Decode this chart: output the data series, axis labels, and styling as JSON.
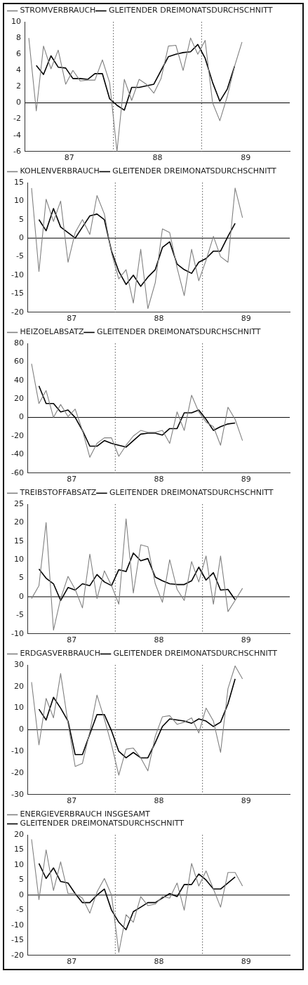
{
  "chart_data": [
    {
      "type": "line",
      "xlim": [
        "1987-01-01",
        "1990-01-01"
      ],
      "xticks": [
        {
          "value": "1987-07-01",
          "label": "87"
        },
        {
          "value": "1988-07-01",
          "label": "88"
        },
        {
          "value": "1989-07-01",
          "label": "89"
        }
      ],
      "ylim": [
        -6,
        10
      ],
      "yticks": [
        -6,
        -4,
        -2,
        0,
        2,
        4,
        6,
        8,
        10
      ],
      "grid": false,
      "legend": "top left",
      "marker": "none",
      "line_style": "solid",
      "ref_lines": [
        {
          "axis": "y",
          "value": 0,
          "color": "#000000",
          "line_style": "solid"
        },
        {
          "axis": "x",
          "value": "1988-01-01",
          "color": "#555555",
          "line_style": "dotted"
        },
        {
          "axis": "x",
          "value": "1989-01-01",
          "color": "#555555",
          "line_style": "dotted"
        }
      ],
      "series": [
        {
          "name": "STROMVERBRAUCH",
          "color": "#808080",
          "x": [
            "1987-01-16",
            "1987-02-15",
            "1987-03-16",
            "1987-04-16",
            "1987-05-16",
            "1987-06-16",
            "1987-07-16",
            "1987-08-16",
            "1987-09-16",
            "1987-10-16",
            "1987-11-16",
            "1987-12-16",
            "1988-01-16",
            "1988-02-15",
            "1988-03-16",
            "1988-04-16",
            "1988-05-16",
            "1988-06-16",
            "1988-07-16",
            "1988-08-16",
            "1988-09-16",
            "1988-10-16",
            "1988-11-16",
            "1988-12-16",
            "1989-01-16",
            "1989-02-15",
            "1989-03-16",
            "1989-04-16",
            "1989-05-16",
            "1989-06-16"
          ],
          "values": [
            8,
            -1,
            7,
            4.2,
            6.5,
            2.3,
            4,
            2.7,
            2.8,
            2.8,
            5.3,
            2.5,
            -6,
            2.9,
            0.3,
            2.9,
            2.3,
            1.2,
            3,
            7,
            7.1,
            4,
            8,
            6,
            7.7,
            0,
            -2.2,
            0.8,
            4.5,
            7.5
          ]
        },
        {
          "name": "GLEITENDER DREIMONATSDURCHSCHNITT",
          "color": "#000000",
          "x": [
            "1987-02-15",
            "1987-03-16",
            "1987-04-16",
            "1987-05-16",
            "1987-06-16",
            "1987-07-16",
            "1987-08-16",
            "1987-09-16",
            "1987-10-16",
            "1987-11-16",
            "1987-12-16",
            "1988-01-16",
            "1988-02-15",
            "1988-03-16",
            "1988-04-16",
            "1988-05-16",
            "1988-06-16",
            "1988-07-16",
            "1988-08-16",
            "1988-09-16",
            "1988-10-16",
            "1988-11-16",
            "1988-12-16",
            "1989-01-16",
            "1989-02-15",
            "1989-03-16",
            "1989-04-16",
            "1989-05-16"
          ],
          "values": [
            4.6,
            3.5,
            5.8,
            4.4,
            4.3,
            3,
            3,
            2.9,
            3.6,
            3.6,
            0.5,
            -0.3,
            -0.9,
            1.9,
            1.9,
            2.1,
            2.3,
            4,
            5.7,
            6,
            6.2,
            6.3,
            7.2,
            5.5,
            2.5,
            0.2,
            1.7,
            4.5
          ]
        }
      ]
    },
    {
      "type": "line",
      "xlim": [
        "1987-01-01",
        "1990-01-01"
      ],
      "xticks": [
        {
          "value": "1987-07-01",
          "label": "87"
        },
        {
          "value": "1988-07-01",
          "label": "88"
        },
        {
          "value": "1989-07-01",
          "label": "89"
        }
      ],
      "ylim": [
        -20,
        15
      ],
      "yticks": [
        -20,
        -15,
        -10,
        -5,
        0,
        5,
        10,
        15
      ],
      "grid": false,
      "legend": "top left",
      "marker": "none",
      "line_style": "solid",
      "ref_lines": [
        {
          "axis": "y",
          "value": 0,
          "color": "#000000",
          "line_style": "solid"
        },
        {
          "axis": "x",
          "value": "1988-01-01",
          "color": "#555555",
          "line_style": "dotted"
        },
        {
          "axis": "x",
          "value": "1989-01-01",
          "color": "#555555",
          "line_style": "dotted"
        }
      ],
      "series": [
        {
          "name": "KOHLENVERBRAUCH",
          "color": "#808080",
          "x": [
            "1987-01-16",
            "1987-02-15",
            "1987-03-16",
            "1987-04-16",
            "1987-05-16",
            "1987-06-16",
            "1987-07-16",
            "1987-08-16",
            "1987-09-16",
            "1987-10-16",
            "1987-11-16",
            "1987-12-16",
            "1988-01-16",
            "1988-02-15",
            "1988-03-16",
            "1988-04-16",
            "1988-05-16",
            "1988-06-16",
            "1988-07-16",
            "1988-08-16",
            "1988-09-16",
            "1988-10-16",
            "1988-11-16",
            "1988-12-16",
            "1989-01-16",
            "1989-02-15",
            "1989-03-16",
            "1989-04-16",
            "1989-05-16",
            "1989-06-16"
          ],
          "values": [
            13.5,
            -9,
            10.5,
            4.5,
            10,
            -6.5,
            1.5,
            5,
            1,
            11.5,
            6.5,
            -4,
            -11,
            -8.5,
            -17.5,
            -3,
            -19,
            -12,
            2.5,
            1.5,
            -8,
            -15.5,
            -3,
            -11.5,
            -6,
            0.5,
            -5,
            -6.5,
            13.5,
            5.5
          ]
        },
        {
          "name": "GLEITENDER DREIMONATSDURCHSCHNITT",
          "color": "#000000",
          "x": [
            "1987-02-15",
            "1987-03-16",
            "1987-04-16",
            "1987-05-16",
            "1987-06-16",
            "1987-07-16",
            "1987-08-16",
            "1987-09-16",
            "1987-10-16",
            "1987-11-16",
            "1987-12-16",
            "1988-01-16",
            "1988-02-15",
            "1988-03-16",
            "1988-04-16",
            "1988-05-16",
            "1988-06-16",
            "1988-07-16",
            "1988-08-16",
            "1988-09-16",
            "1988-10-16",
            "1988-11-16",
            "1988-12-16",
            "1989-01-16",
            "1989-02-15",
            "1989-03-16",
            "1989-04-16",
            "1989-05-16"
          ],
          "values": [
            5,
            2,
            8,
            3,
            1.5,
            0,
            3,
            6,
            6.5,
            5,
            -3.5,
            -9,
            -12.5,
            -10,
            -13,
            -10.5,
            -8.5,
            -2.5,
            -1,
            -7,
            -8.5,
            -9.5,
            -6.5,
            -5.5,
            -3.5,
            -3.5,
            0.5,
            4
          ]
        }
      ]
    },
    {
      "type": "line",
      "xlim": [
        "1987-01-01",
        "1990-01-01"
      ],
      "xticks": [
        {
          "value": "1987-07-01",
          "label": "87"
        },
        {
          "value": "1988-07-01",
          "label": "88"
        },
        {
          "value": "1989-07-01",
          "label": "89"
        }
      ],
      "ylim": [
        -60,
        80
      ],
      "yticks": [
        -60,
        -40,
        -20,
        0,
        20,
        40,
        60,
        80
      ],
      "grid": false,
      "legend": "top left",
      "marker": "none",
      "line_style": "solid",
      "ref_lines": [
        {
          "axis": "y",
          "value": 0,
          "color": "#000000",
          "line_style": "solid"
        },
        {
          "axis": "x",
          "value": "1988-01-01",
          "color": "#555555",
          "line_style": "dotted"
        },
        {
          "axis": "x",
          "value": "1989-01-01",
          "color": "#555555",
          "line_style": "dotted"
        }
      ],
      "series": [
        {
          "name": "HEIZOELABSATZ",
          "color": "#808080",
          "x": [
            "1987-01-16",
            "1987-02-15",
            "1987-03-16",
            "1987-04-16",
            "1987-05-16",
            "1987-06-16",
            "1987-07-16",
            "1987-08-16",
            "1987-09-16",
            "1987-10-16",
            "1987-11-16",
            "1987-12-16",
            "1988-01-16",
            "1988-02-15",
            "1988-03-16",
            "1988-04-16",
            "1988-05-16",
            "1988-06-16",
            "1988-07-16",
            "1988-08-16",
            "1988-09-16",
            "1988-10-16",
            "1988-11-16",
            "1988-12-16",
            "1989-01-16",
            "1989-02-15",
            "1989-03-16",
            "1989-04-16",
            "1989-05-16",
            "1989-06-16"
          ],
          "values": [
            58,
            15,
            29,
            0,
            14,
            1,
            9,
            -14,
            -43,
            -28,
            -22,
            -22,
            -42,
            -30,
            -20,
            -14,
            -16,
            -16,
            -14,
            -28,
            6,
            -14,
            24,
            6,
            -5,
            -10,
            -30,
            11,
            -2,
            -25
          ]
        },
        {
          "name": "GLEITENDER DREIMONATSDURCHSCHNITT",
          "color": "#000000",
          "x": [
            "1987-02-15",
            "1987-03-16",
            "1987-04-16",
            "1987-05-16",
            "1987-06-16",
            "1987-07-16",
            "1987-08-16",
            "1987-09-16",
            "1987-10-16",
            "1987-11-16",
            "1987-12-16",
            "1988-01-16",
            "1988-02-15",
            "1988-03-16",
            "1988-04-16",
            "1988-05-16",
            "1988-06-16",
            "1988-07-16",
            "1988-08-16",
            "1988-09-16",
            "1988-10-16",
            "1988-11-16",
            "1988-12-16",
            "1989-01-16",
            "1989-02-15",
            "1989-03-16",
            "1989-04-16",
            "1989-05-16"
          ],
          "values": [
            34,
            15,
            15,
            6,
            8,
            0,
            -14,
            -31,
            -31,
            -25,
            -28,
            -30,
            -32,
            -25,
            -18,
            -17,
            -17,
            -19,
            -12,
            -12,
            5,
            5,
            8,
            -2,
            -14,
            -10,
            -7,
            -6
          ]
        }
      ]
    },
    {
      "type": "line",
      "xlim": [
        "1987-01-01",
        "1990-01-01"
      ],
      "xticks": [
        {
          "value": "1987-07-01",
          "label": "87"
        },
        {
          "value": "1988-07-01",
          "label": "88"
        },
        {
          "value": "1989-07-01",
          "label": "89"
        }
      ],
      "ylim": [
        -10,
        25
      ],
      "yticks": [
        -10,
        -5,
        0,
        5,
        10,
        15,
        20,
        25
      ],
      "grid": false,
      "legend": "top left",
      "marker": "none",
      "line_style": "solid",
      "ref_lines": [
        {
          "axis": "y",
          "value": 0,
          "color": "#000000",
          "line_style": "solid"
        },
        {
          "axis": "x",
          "value": "1988-01-01",
          "color": "#555555",
          "line_style": "dotted"
        },
        {
          "axis": "x",
          "value": "1989-01-01",
          "color": "#555555",
          "line_style": "dotted"
        }
      ],
      "series": [
        {
          "name": "TREIBSTOFFABSATZ",
          "color": "#808080",
          "x": [
            "1987-01-16",
            "1987-02-15",
            "1987-03-16",
            "1987-04-16",
            "1987-05-16",
            "1987-06-16",
            "1987-07-16",
            "1987-08-16",
            "1987-09-16",
            "1987-10-16",
            "1987-11-16",
            "1987-12-16",
            "1988-01-16",
            "1988-02-15",
            "1988-03-16",
            "1988-04-16",
            "1988-05-16",
            "1988-06-16",
            "1988-07-16",
            "1988-08-16",
            "1988-09-16",
            "1988-10-16",
            "1988-11-16",
            "1988-12-16",
            "1989-01-16",
            "1989-02-15",
            "1989-03-16",
            "1989-04-16",
            "1989-05-16",
            "1989-06-16"
          ],
          "values": [
            -0.5,
            3,
            20,
            -9,
            -0.5,
            5.5,
            2,
            -3,
            11.5,
            -0.5,
            7,
            3,
            -2,
            21,
            1,
            14,
            13.5,
            3.5,
            -1.5,
            10,
            2,
            -1,
            9.5,
            4,
            11,
            -2,
            11,
            -4,
            -1,
            2.3
          ]
        },
        {
          "name": "GLEITENDER DREIMONATSDURCHSCHNITT",
          "color": "#000000",
          "x": [
            "1987-02-15",
            "1987-03-16",
            "1987-04-16",
            "1987-05-16",
            "1987-06-16",
            "1987-07-16",
            "1987-08-16",
            "1987-09-16",
            "1987-10-16",
            "1987-11-16",
            "1987-12-16",
            "1988-01-16",
            "1988-02-15",
            "1988-03-16",
            "1988-04-16",
            "1988-05-16",
            "1988-06-16",
            "1988-07-16",
            "1988-08-16",
            "1988-09-16",
            "1988-10-16",
            "1988-11-16",
            "1988-12-16",
            "1989-01-16",
            "1989-02-15",
            "1989-03-16",
            "1989-04-16",
            "1989-05-16"
          ],
          "values": [
            7.5,
            5,
            3.5,
            -1,
            2.5,
            1.8,
            3.5,
            3,
            6,
            4,
            3,
            7.3,
            6.8,
            11.8,
            9.7,
            10.3,
            5.3,
            4.3,
            3.5,
            3.3,
            3.3,
            4.3,
            8,
            4.5,
            6.5,
            1.8,
            2,
            -0.8
          ]
        }
      ]
    },
    {
      "type": "line",
      "xlim": [
        "1987-01-01",
        "1990-01-01"
      ],
      "xticks": [
        {
          "value": "1987-07-01",
          "label": "87"
        },
        {
          "value": "1988-07-01",
          "label": "88"
        },
        {
          "value": "1989-07-01",
          "label": "89"
        }
      ],
      "ylim": [
        -30,
        30
      ],
      "yticks": [
        -30,
        -20,
        -10,
        0,
        10,
        20,
        30
      ],
      "grid": false,
      "legend": "top left",
      "marker": "none",
      "line_style": "solid",
      "ref_lines": [
        {
          "axis": "y",
          "value": 0,
          "color": "#000000",
          "line_style": "solid"
        },
        {
          "axis": "x",
          "value": "1988-01-01",
          "color": "#555555",
          "line_style": "dotted"
        },
        {
          "axis": "x",
          "value": "1989-01-01",
          "color": "#555555",
          "line_style": "dotted"
        }
      ],
      "series": [
        {
          "name": "ERDGASVERBRAUCH",
          "color": "#808080",
          "x": [
            "1987-01-16",
            "1987-02-15",
            "1987-03-16",
            "1987-04-16",
            "1987-05-16",
            "1987-06-16",
            "1987-07-16",
            "1987-08-16",
            "1987-09-16",
            "1987-10-16",
            "1987-11-16",
            "1987-12-16",
            "1988-01-16",
            "1988-02-15",
            "1988-03-16",
            "1988-04-16",
            "1988-05-16",
            "1988-06-16",
            "1988-07-16",
            "1988-08-16",
            "1988-09-16",
            "1988-10-16",
            "1988-11-16",
            "1988-12-16",
            "1989-01-16",
            "1989-02-15",
            "1989-03-16",
            "1989-04-16",
            "1989-05-16",
            "1989-06-16"
          ],
          "values": [
            22,
            -7,
            14.5,
            5.5,
            26,
            3,
            -17,
            -15.5,
            -1,
            16,
            5,
            -7,
            -21,
            -9,
            -8.5,
            -13,
            -19,
            -3,
            6,
            6.5,
            2.5,
            3.5,
            5.5,
            -1.5,
            10,
            4,
            -10.5,
            19,
            29.5,
            23.5
          ]
        },
        {
          "name": "GLEITENDER DREIMONATSDURCHSCHNITT",
          "color": "#000000",
          "x": [
            "1987-02-15",
            "1987-03-16",
            "1987-04-16",
            "1987-05-16",
            "1987-06-16",
            "1987-07-16",
            "1987-08-16",
            "1987-09-16",
            "1987-10-16",
            "1987-11-16",
            "1987-12-16",
            "1988-01-16",
            "1988-02-15",
            "1988-03-16",
            "1988-04-16",
            "1988-05-16",
            "1988-06-16",
            "1988-07-16",
            "1988-08-16",
            "1988-09-16",
            "1988-10-16",
            "1988-11-16",
            "1988-12-16",
            "1989-01-16",
            "1989-02-15",
            "1989-03-16",
            "1989-04-16",
            "1989-05-16"
          ],
          "values": [
            9.5,
            4.5,
            15,
            10,
            4,
            -11.5,
            -11.5,
            -2,
            7,
            7,
            -0.5,
            -10,
            -13,
            -10.5,
            -13,
            -13,
            -6,
            1.5,
            5,
            4.5,
            4,
            3,
            5,
            4,
            1.5,
            3.5,
            12,
            23.5
          ]
        }
      ]
    },
    {
      "type": "line",
      "xlim": [
        "1987-01-01",
        "1990-01-01"
      ],
      "xticks": [
        {
          "value": "1987-07-01",
          "label": "87"
        },
        {
          "value": "1988-07-01",
          "label": "88"
        },
        {
          "value": "1989-07-01",
          "label": "89"
        }
      ],
      "ylim": [
        -20,
        20
      ],
      "yticks": [
        -20,
        -15,
        -10,
        -5,
        0,
        5,
        10,
        15,
        20
      ],
      "grid": false,
      "legend": "top left",
      "marker": "none",
      "line_style": "solid",
      "ref_lines": [
        {
          "axis": "y",
          "value": 0,
          "color": "#000000",
          "line_style": "solid"
        },
        {
          "axis": "x",
          "value": "1988-01-01",
          "color": "#555555",
          "line_style": "dotted"
        },
        {
          "axis": "x",
          "value": "1989-01-01",
          "color": "#555555",
          "line_style": "dotted"
        }
      ],
      "series": [
        {
          "name": "ENERGIEVERBRAUCH INSGESAMT",
          "color": "#808080",
          "x": [
            "1987-01-16",
            "1987-02-15",
            "1987-03-16",
            "1987-04-16",
            "1987-05-16",
            "1987-06-16",
            "1987-07-16",
            "1987-08-16",
            "1987-09-16",
            "1987-10-16",
            "1987-11-16",
            "1987-12-16",
            "1988-01-16",
            "1988-02-15",
            "1988-03-16",
            "1988-04-16",
            "1988-05-16",
            "1988-06-16",
            "1988-07-16",
            "1988-08-16",
            "1988-09-16",
            "1988-10-16",
            "1988-11-16",
            "1988-12-16",
            "1989-01-16",
            "1989-02-15",
            "1989-03-16",
            "1989-04-16",
            "1989-05-16",
            "1989-06-16"
          ],
          "values": [
            18.5,
            -1.5,
            15,
            1.5,
            11,
            0.5,
            0.5,
            -1,
            -6,
            1,
            5.5,
            0,
            -19,
            -6.5,
            -9,
            -0.5,
            -3.5,
            -3,
            -0.5,
            -1,
            4,
            -5,
            10.5,
            3,
            8,
            2,
            -4,
            7.5,
            7.5,
            3
          ]
        },
        {
          "name": "GLEITENDER DREIMONATSDURCHSCHNITT",
          "color": "#000000",
          "x": [
            "1987-02-15",
            "1987-03-16",
            "1987-04-16",
            "1987-05-16",
            "1987-06-16",
            "1987-07-16",
            "1987-08-16",
            "1987-09-16",
            "1987-10-16",
            "1987-11-16",
            "1987-12-16",
            "1988-01-16",
            "1988-02-15",
            "1988-03-16",
            "1988-04-16",
            "1988-05-16",
            "1988-06-16",
            "1988-07-16",
            "1988-08-16",
            "1988-09-16",
            "1988-10-16",
            "1988-11-16",
            "1988-12-16",
            "1989-01-16",
            "1989-02-15",
            "1989-03-16",
            "1989-04-16",
            "1989-05-16"
          ],
          "values": [
            10.5,
            5.5,
            9,
            4.5,
            4,
            0.5,
            -2.5,
            -2.5,
            0,
            2,
            -5,
            -9,
            -11.5,
            -5.5,
            -4,
            -2.5,
            -2.5,
            -1,
            0.5,
            -0.5,
            3.5,
            3.5,
            7,
            5,
            2,
            2,
            4,
            6
          ]
        }
      ]
    }
  ]
}
